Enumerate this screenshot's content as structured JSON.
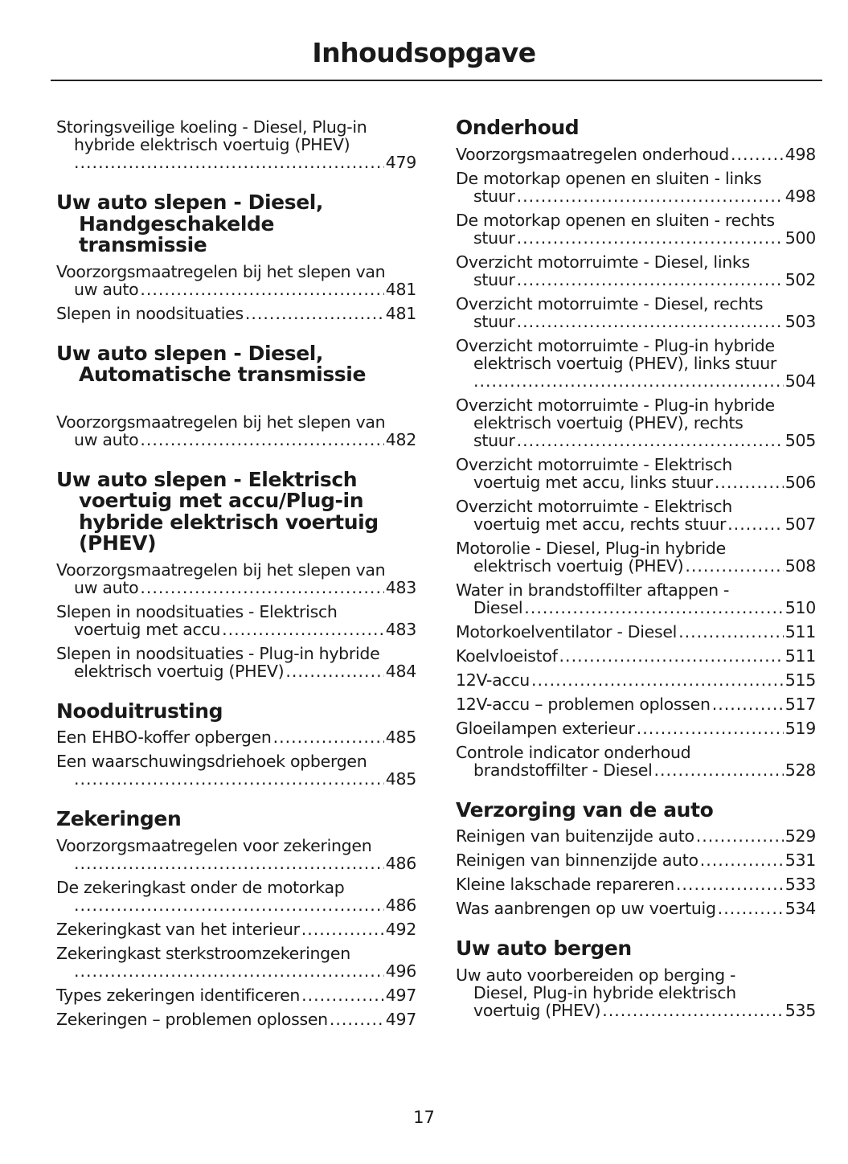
{
  "header": {
    "title": "Inhoudsopgave"
  },
  "footer": {
    "page_number": "17"
  },
  "columns": [
    [
      {
        "type": "entry",
        "lines": [
          "Storingsveilige koeling - Diesel, Plug-in",
          "hybride elektrisch voertuig (PHEV)",
          ""
        ],
        "page": "479"
      },
      {
        "type": "heading",
        "lines": [
          "Uw auto slepen - Diesel,",
          "Handgeschakelde",
          "transmissie"
        ]
      },
      {
        "type": "entry",
        "lines": [
          "Voorzorgsmaatregelen bij het slepen van",
          "uw auto"
        ],
        "page": "481"
      },
      {
        "type": "entry",
        "lines": [
          "Slepen in noodsituaties"
        ],
        "page": "481"
      },
      {
        "type": "heading",
        "extra": true,
        "lines": [
          "Uw auto slepen - Diesel,",
          "Automatische transmissie"
        ]
      },
      {
        "type": "entry",
        "lines": [
          "Voorzorgsmaatregelen bij het slepen van",
          "uw auto"
        ],
        "page": "482"
      },
      {
        "type": "heading",
        "lines": [
          "Uw auto slepen - Elektrisch",
          "voertuig met accu/Plug-in",
          "hybride elektrisch voertuig",
          "(PHEV)"
        ]
      },
      {
        "type": "entry",
        "lines": [
          "Voorzorgsmaatregelen bij het slepen van",
          "uw auto"
        ],
        "page": "483"
      },
      {
        "type": "entry",
        "lines": [
          "Slepen in noodsituaties - Elektrisch",
          "voertuig met accu"
        ],
        "page": "483"
      },
      {
        "type": "entry",
        "lines": [
          "Slepen in noodsituaties - Plug-in hybride",
          "elektrisch voertuig (PHEV)"
        ],
        "page": "484"
      },
      {
        "type": "heading",
        "lines": [
          "Nooduitrusting"
        ]
      },
      {
        "type": "entry",
        "lines": [
          "Een EHBO-koffer opbergen"
        ],
        "page": "485"
      },
      {
        "type": "entry",
        "lines": [
          "Een waarschuwingsdriehoek opbergen",
          ""
        ],
        "page": "485"
      },
      {
        "type": "heading",
        "lines": [
          "Zekeringen"
        ]
      },
      {
        "type": "entry",
        "lines": [
          "Voorzorgsmaatregelen voor zekeringen",
          ""
        ],
        "page": "486"
      },
      {
        "type": "entry",
        "lines": [
          "De zekeringkast onder de motorkap",
          ""
        ],
        "page": "486"
      },
      {
        "type": "entry",
        "lines": [
          "Zekeringkast van het interieur"
        ],
        "page": "492"
      },
      {
        "type": "entry",
        "lines": [
          "Zekeringkast sterkstroomzekeringen",
          ""
        ],
        "page": "496"
      },
      {
        "type": "entry",
        "lines": [
          "Types zekeringen identificeren"
        ],
        "page": "497"
      },
      {
        "type": "entry",
        "lines": [
          "Zekeringen – problemen oplossen"
        ],
        "page": "497"
      }
    ],
    [
      {
        "type": "heading",
        "first": true,
        "lines": [
          "Onderhoud"
        ]
      },
      {
        "type": "entry",
        "lines": [
          "Voorzorgsmaatregelen onderhoud"
        ],
        "page": "498"
      },
      {
        "type": "entry",
        "lines": [
          "De motorkap openen en sluiten - links",
          "stuur"
        ],
        "page": "498"
      },
      {
        "type": "entry",
        "lines": [
          "De motorkap openen en sluiten - rechts",
          "stuur"
        ],
        "page": "500"
      },
      {
        "type": "entry",
        "lines": [
          "Overzicht motorruimte - Diesel, links",
          "stuur"
        ],
        "page": "502"
      },
      {
        "type": "entry",
        "lines": [
          "Overzicht motorruimte - Diesel, rechts",
          "stuur"
        ],
        "page": "503"
      },
      {
        "type": "entry",
        "lines": [
          "Overzicht motorruimte - Plug-in hybride",
          "elektrisch voertuig (PHEV), links stuur",
          ""
        ],
        "page": "504"
      },
      {
        "type": "entry",
        "lines": [
          "Overzicht motorruimte - Plug-in hybride",
          "elektrisch voertuig (PHEV), rechts",
          "stuur"
        ],
        "page": "505"
      },
      {
        "type": "entry",
        "lines": [
          "Overzicht motorruimte - Elektrisch",
          "voertuig met accu, links stuur"
        ],
        "page": "506"
      },
      {
        "type": "entry",
        "lines": [
          "Overzicht motorruimte - Elektrisch",
          "voertuig met accu, rechts stuur"
        ],
        "page": "507"
      },
      {
        "type": "entry",
        "lines": [
          "Motorolie - Diesel, Plug-in hybride",
          "elektrisch voertuig (PHEV)"
        ],
        "page": "508"
      },
      {
        "type": "entry",
        "lines": [
          "Water in brandstoffilter aftappen -",
          "Diesel"
        ],
        "page": "510"
      },
      {
        "type": "entry",
        "lines": [
          "Motorkoelventilator - Diesel"
        ],
        "page": "511"
      },
      {
        "type": "entry",
        "lines": [
          "Koelvloeistof"
        ],
        "page": "511"
      },
      {
        "type": "entry",
        "lines": [
          "12V-accu"
        ],
        "page": "515"
      },
      {
        "type": "entry",
        "lines": [
          "12V-accu – problemen oplossen"
        ],
        "page": "517"
      },
      {
        "type": "entry",
        "lines": [
          "Gloeilampen exterieur"
        ],
        "page": "519"
      },
      {
        "type": "entry",
        "lines": [
          "Controle indicator onderhoud",
          "brandstoffilter - Diesel"
        ],
        "page": "528"
      },
      {
        "type": "heading",
        "lines": [
          "Verzorging van de auto"
        ]
      },
      {
        "type": "entry",
        "lines": [
          "Reinigen van buitenzijde auto"
        ],
        "page": "529"
      },
      {
        "type": "entry",
        "lines": [
          "Reinigen van binnenzijde auto"
        ],
        "page": "531"
      },
      {
        "type": "entry",
        "lines": [
          "Kleine lakschade repareren"
        ],
        "page": "533"
      },
      {
        "type": "entry",
        "lines": [
          "Was aanbrengen op uw voertuig"
        ],
        "page": "534"
      },
      {
        "type": "heading",
        "lines": [
          "Uw auto bergen"
        ]
      },
      {
        "type": "entry",
        "lines": [
          "Uw auto voorbereiden op berging -",
          "Diesel, Plug-in hybride elektrisch",
          "voertuig (PHEV)"
        ],
        "page": "535"
      }
    ]
  ]
}
